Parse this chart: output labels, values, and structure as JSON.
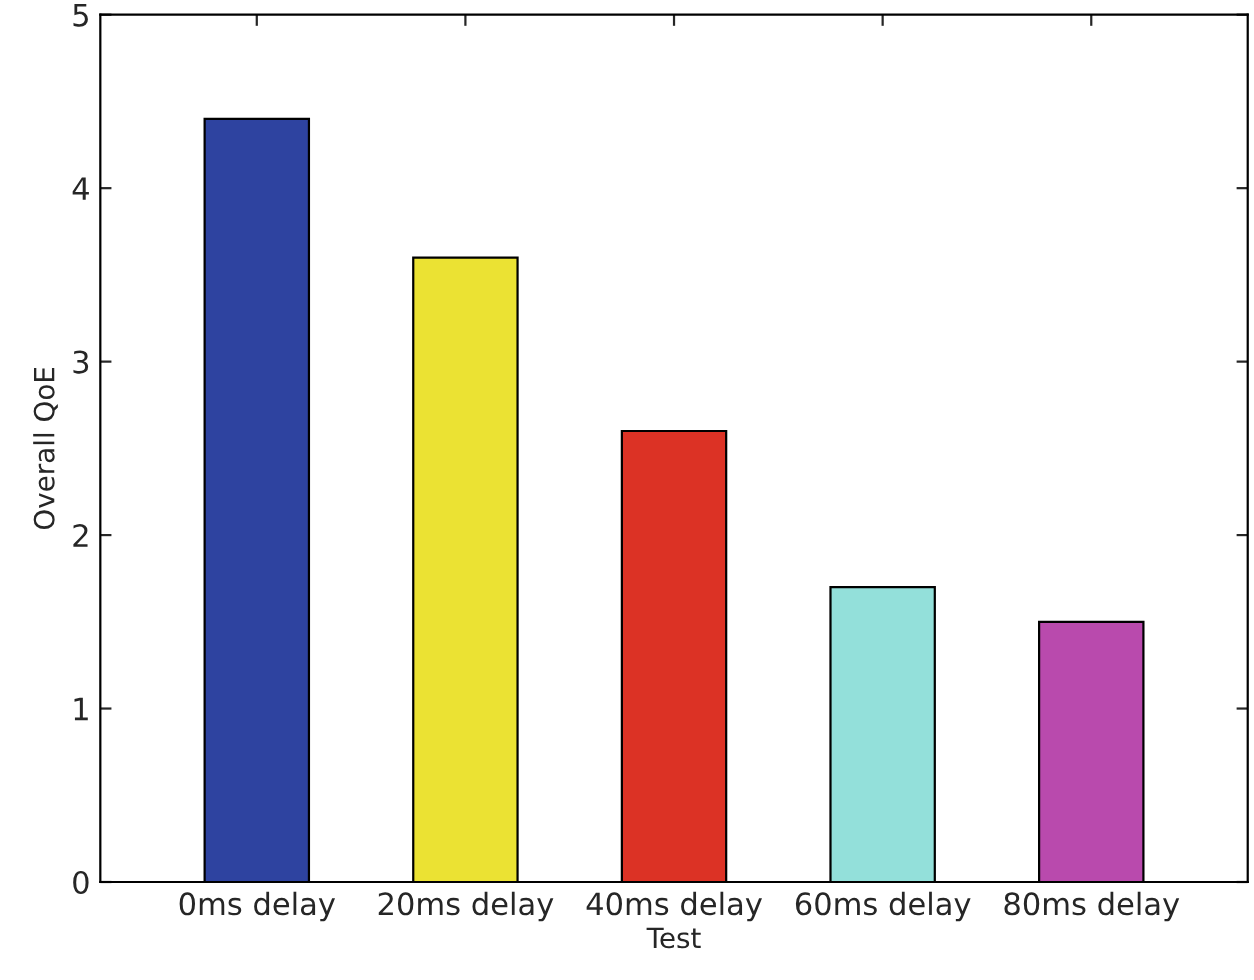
{
  "chart_data": {
    "type": "bar",
    "xlabel": "Test",
    "ylabel": "Overall QoE",
    "categories": [
      "0ms delay",
      "20ms delay",
      "40ms delay",
      "60ms delay",
      "80ms delay"
    ],
    "values": [
      4.4,
      3.6,
      2.6,
      1.7,
      1.5
    ],
    "colors": [
      "#2e43a0",
      "#ebe233",
      "#dc3225",
      "#93e0da",
      "#b94aad"
    ],
    "ylim": [
      0,
      5
    ],
    "yticks": [
      0,
      1,
      2,
      3,
      4,
      5
    ],
    "grid": false,
    "legend": false
  }
}
